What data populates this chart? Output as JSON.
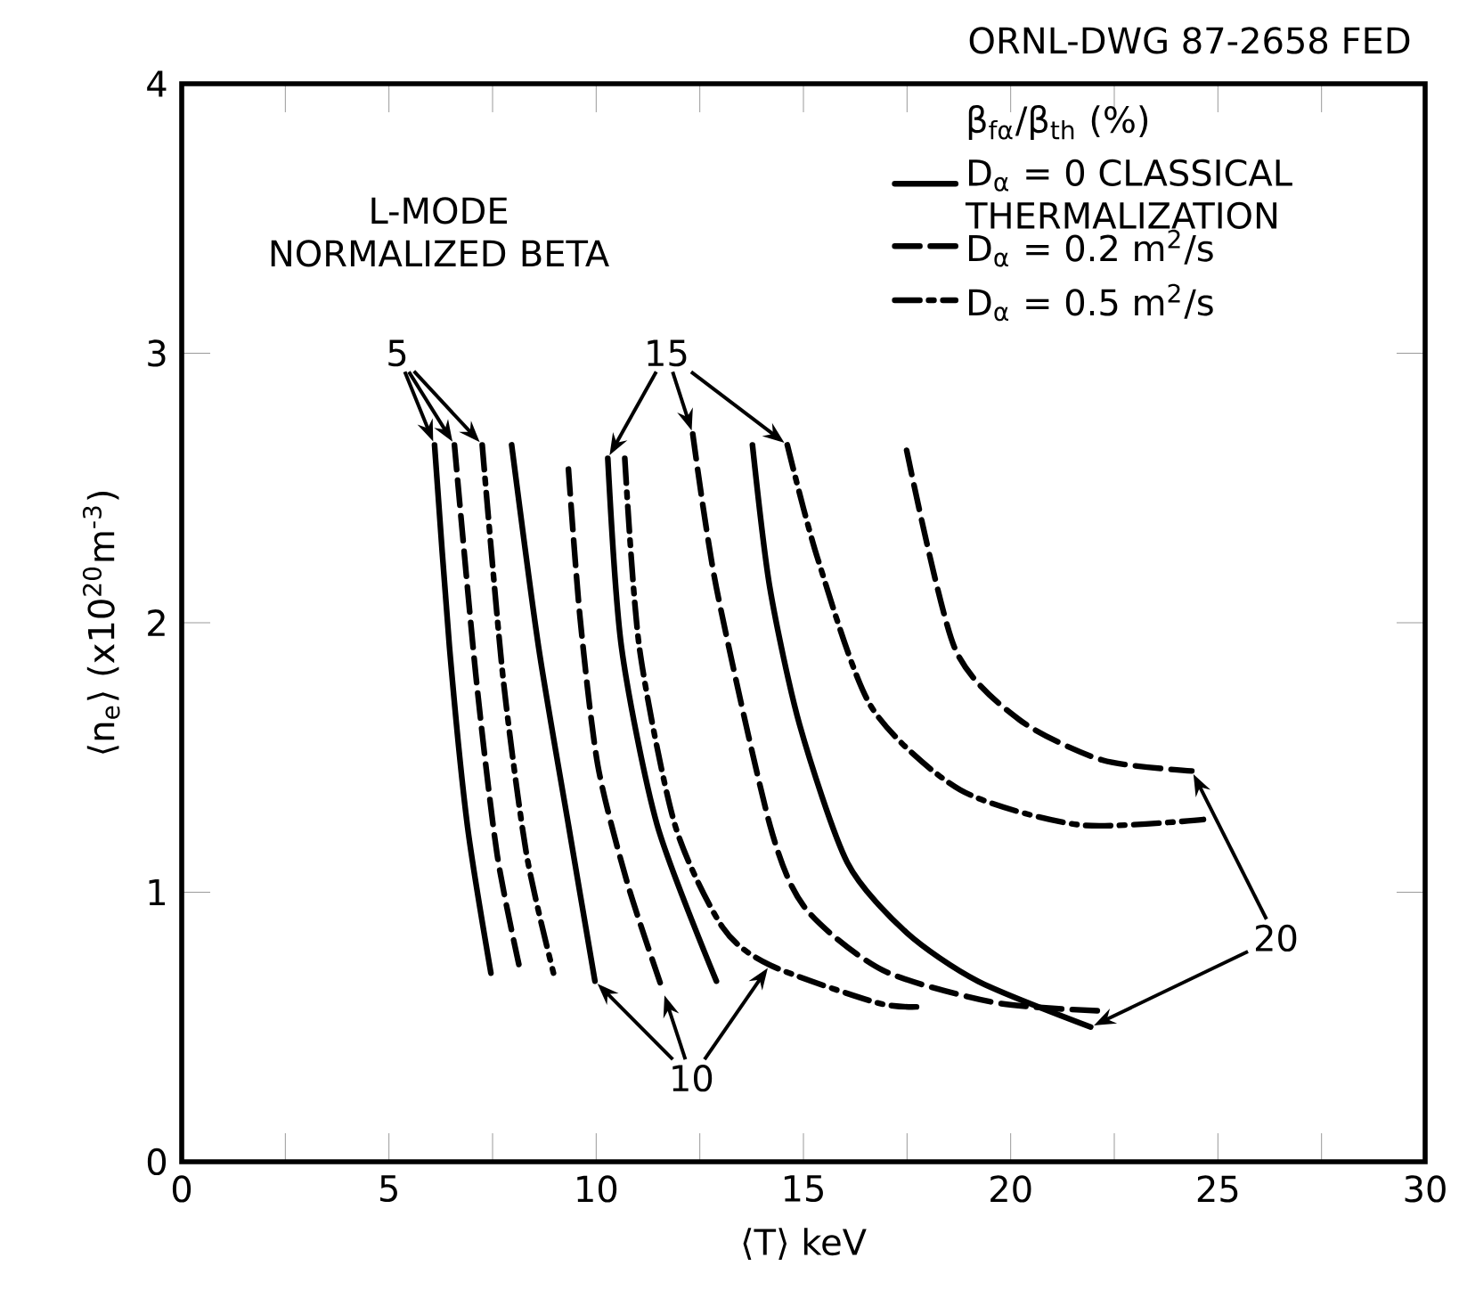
{
  "chart_data": {
    "type": "line",
    "xlabel": "⟨T⟩ keV",
    "ylabel": "⟨n$_{e}$⟩ (x10$^{20}$m$^{-3}$)",
    "legend_title": "β$_{fα}$/β$_{th}$ (%)",
    "legend": "top right",
    "xlim": [
      0,
      30
    ],
    "ylim": [
      0,
      4
    ],
    "xticks": [
      0,
      5,
      10,
      15,
      20,
      25,
      30
    ],
    "yticks": [
      0,
      1,
      2,
      3,
      4
    ],
    "annotations": [
      "ORNL-DWG 87-2658 FED",
      "L-MODE NORMALIZED BETA",
      {
        "text": "5",
        "x": 6.1,
        "y": 2.66
      },
      {
        "text": "15",
        "x": 10.28,
        "y": 2.61
      },
      {
        "text": "10",
        "x": 11.62,
        "y": 0.63
      },
      "20"
    ],
    "series": [
      {
        "name": "D$_{α}$ = 0 CLASSICAL THERMALIZATION",
        "color": "#000000",
        "line_style": "solid",
        "x": [
          6.1,
          6.46,
          6.89,
          7.46
        ],
        "values": [
          2.66,
          1.91,
          1.25,
          0.7
        ]
      },
      {
        "name": "D$_{α}$ = 0.2 m$^{2}$/s",
        "color": "#000000",
        "line_style": "dashed",
        "x": [
          6.58,
          7.1,
          7.61,
          8.18
        ],
        "values": [
          2.66,
          1.8,
          1.14,
          0.7
        ]
      },
      {
        "name": "D$_{α}$ = 0.5 m$^{2}$/s",
        "color": "#000000",
        "line_style": "dash-dot",
        "x": [
          7.25,
          7.75,
          8.32,
          8.97
        ],
        "values": [
          2.66,
          1.8,
          1.14,
          0.7
        ]
      },
      {
        "color": "#000000",
        "line_style": "solid",
        "x": [
          7.96,
          8.61,
          9.33,
          9.97
        ],
        "values": [
          2.66,
          1.91,
          1.25,
          0.67
        ]
      },
      {
        "color": "#000000",
        "line_style": "dashed",
        "x": [
          9.33,
          9.61,
          10.04,
          10.76,
          11.62
        ],
        "values": [
          2.57,
          2.02,
          1.47,
          1.03,
          0.63
        ]
      },
      {
        "color": "#000000",
        "line_style": "dash-dot",
        "x": [
          10.69,
          11.04,
          11.9,
          13.05,
          14.19,
          16.77,
          17.78
        ],
        "values": [
          2.61,
          1.91,
          1.25,
          0.87,
          0.73,
          0.59,
          0.575
        ]
      },
      {
        "color": "#000000",
        "line_style": "solid",
        "x": [
          10.28,
          10.61,
          11.47,
          12.9
        ],
        "values": [
          2.61,
          1.91,
          1.25,
          0.67
        ]
      },
      {
        "color": "#000000",
        "line_style": "dashed",
        "x": [
          12.33,
          12.9,
          14.19,
          15.05,
          16.92,
          19.64,
          22.14
        ],
        "values": [
          2.7,
          2.13,
          1.25,
          0.94,
          0.71,
          0.59,
          0.56
        ]
      },
      {
        "color": "#000000",
        "line_style": "dash-dot",
        "x": [
          14.61,
          15.34,
          16.63,
          18.78,
          21.65,
          24.65
        ],
        "values": [
          2.66,
          2.24,
          1.69,
          1.38,
          1.25,
          1.27
        ]
      },
      {
        "color": "#000000",
        "line_style": "solid",
        "x": [
          13.77,
          14.19,
          14.91,
          16.06,
          17.49,
          19.21,
          21.93
        ],
        "values": [
          2.66,
          2.13,
          1.62,
          1.11,
          0.85,
          0.67,
          0.5
        ]
      },
      {
        "color": "#000000",
        "line_style": "dashed",
        "x": [
          17.49,
          18.64,
          20.21,
          22.22,
          24.37
        ],
        "values": [
          2.64,
          1.91,
          1.64,
          1.49,
          1.45
        ]
      }
    ]
  }
}
